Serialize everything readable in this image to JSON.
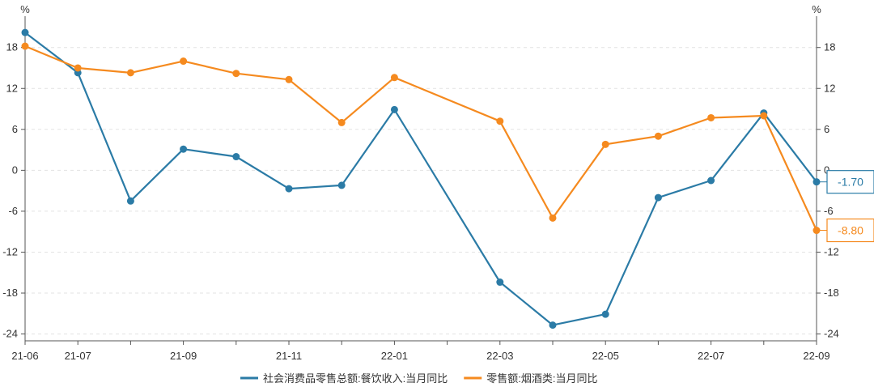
{
  "chart_data": {
    "type": "line",
    "x": [
      "21-06",
      "21-07",
      "21-08",
      "21-09",
      "21-10",
      "21-11",
      "21-12",
      "22-01",
      "22-02",
      "22-03",
      "22-04",
      "22-05",
      "22-06",
      "22-07",
      "22-08",
      "22-09"
    ],
    "x_tick_labels": [
      "21-06",
      "21-07",
      "21-09",
      "21-11",
      "22-01",
      "22-03",
      "22-05",
      "22-07",
      "22-09"
    ],
    "y_ticks": [
      18,
      12,
      6,
      0,
      -6,
      -12,
      -18,
      -24
    ],
    "ylim": [
      -25,
      22
    ],
    "left_unit": "%",
    "right_unit": "%",
    "grid": true,
    "legend_position": "bottom-center",
    "series": [
      {
        "name": "社会消费品零售总额:餐饮收入:当月同比",
        "color": "#2b7ba6",
        "values": [
          20.2,
          14.3,
          -4.5,
          3.1,
          2.0,
          -2.7,
          -2.2,
          8.9,
          null,
          -16.4,
          -22.7,
          -21.1,
          -4.0,
          -1.5,
          8.4,
          -1.7
        ],
        "end_label": "-1.70"
      },
      {
        "name": "零售额:烟酒类:当月同比",
        "color": "#f58a1f",
        "values": [
          18.2,
          15.0,
          14.3,
          16.0,
          14.2,
          13.3,
          7.0,
          13.6,
          null,
          7.2,
          -7.0,
          3.8,
          5.0,
          7.7,
          8.0,
          -8.8
        ],
        "end_label": "-8.80"
      }
    ]
  }
}
